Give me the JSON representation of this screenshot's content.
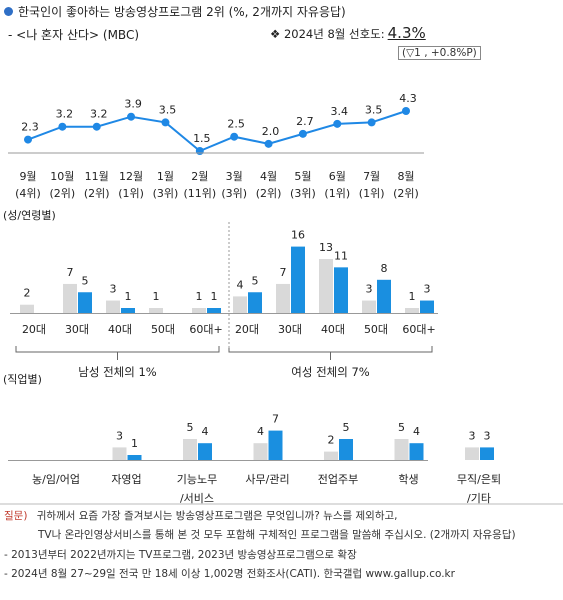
{
  "header": {
    "title": "한국인이 좋아하는 방송영상프로그램 2위",
    "title_note": "(%, 2개까지 자유응답)",
    "subtitle": "- <나 혼자 산다> (MBC)",
    "pref_label": "❖ 2024년 8월 선호도:",
    "pref_value": "4.3%",
    "change": "(▽1 , +0.8%P)"
  },
  "colors": {
    "line": "#1f88e5",
    "male_prev": "#d9d9d9",
    "current_bar": "#1a8fe0",
    "accent_dot": "#2f6fc6"
  },
  "chart_data": [
    {
      "type": "line",
      "name": "monthly-trend",
      "x": [
        "9월",
        "10월",
        "11월",
        "12월",
        "1월",
        "2월",
        "3월",
        "4월",
        "5월",
        "6월",
        "7월",
        "8월"
      ],
      "ranks": [
        "(4위)",
        "(2위)",
        "(2위)",
        "(1위)",
        "(3위)",
        "(11위)",
        "(3위)",
        "(2위)",
        "(3위)",
        "(1위)",
        "(1위)",
        "(2위)"
      ],
      "values": [
        2.3,
        3.2,
        3.2,
        3.9,
        3.5,
        1.5,
        2.5,
        2.0,
        2.7,
        3.4,
        3.5,
        4.3
      ],
      "ylim": [
        0,
        5
      ]
    },
    {
      "type": "bar",
      "name": "gender-age",
      "section_label": "(성/연령별)",
      "groups": [
        {
          "label": "남성 전체의 1%",
          "categories": [
            "20대",
            "30대",
            "40대",
            "50대",
            "60대+"
          ],
          "prev": [
            2,
            7,
            3,
            1,
            1
          ],
          "curr": [
            null,
            5,
            1,
            null,
            1
          ]
        },
        {
          "label": "여성 전체의 7%",
          "categories": [
            "20대",
            "30대",
            "40대",
            "50대",
            "60대+"
          ],
          "prev": [
            4,
            7,
            13,
            3,
            1
          ],
          "curr": [
            5,
            16,
            11,
            8,
            3
          ]
        }
      ]
    },
    {
      "type": "bar",
      "name": "occupation",
      "section_label": "(직업별)",
      "categories": [
        "농/임/어업",
        "자영업",
        "기능노무\n/서비스",
        "사무/관리",
        "전업주부",
        "학생",
        "무직/은퇴\n/기타"
      ],
      "prev": [
        null,
        3,
        5,
        4,
        2,
        5,
        3
      ],
      "curr": [
        null,
        1,
        4,
        7,
        5,
        4,
        3
      ]
    }
  ],
  "footer": {
    "q_label": "질문)",
    "q_line1": "귀하께서 요즘 가장 즐겨보시는 방송영상프로그램은 무엇입니까? 뉴스를 제외하고,",
    "q_line2": "TV나 온라인영상서비스를 통해 본 것 모두 포함해 구체적인 프로그램을 말씀해 주십시오. (2개까지 자유응답)",
    "note1": "- 2013년부터 2022년까지는 TV프로그램, 2023년 방송영상프로그램으로 확장",
    "note2": "- 2024년 8월 27~29일 전국 만 18세 이상 1,002명 전화조사(CATI). 한국갤럽 www.gallup.co.kr"
  }
}
